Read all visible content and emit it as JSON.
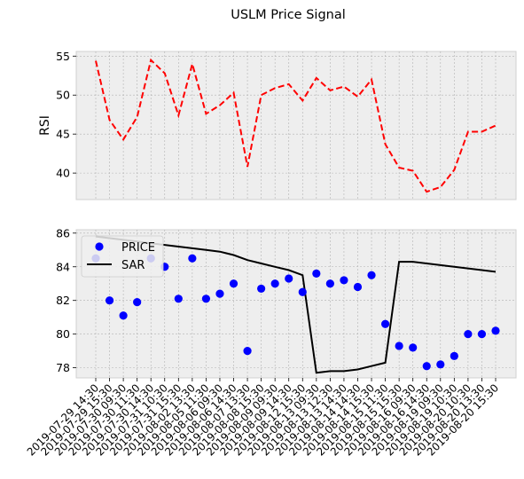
{
  "figure": {
    "title": "USLM Price Signal"
  },
  "chart_data": [
    {
      "type": "line",
      "ylabel": "RSI",
      "ylim": [
        36.6,
        55.6
      ],
      "yticks": [
        40,
        45,
        50,
        55
      ],
      "grid": true,
      "series": [
        {
          "name": "",
          "color": "#ff0000",
          "style": "dashed",
          "values": [
            54.4,
            46.8,
            44.3,
            47.2,
            54.5,
            52.8,
            47.4,
            54.0,
            47.6,
            48.7,
            50.3,
            40.8,
            50.0,
            50.9,
            51.4,
            49.3,
            52.2,
            50.6,
            51.1,
            49.8,
            52.0,
            43.7,
            40.7,
            40.3,
            37.6,
            38.2,
            40.4,
            45.3,
            45.3,
            46.1
          ]
        }
      ]
    },
    {
      "type": "scatter",
      "ylabel": "",
      "ylim": [
        77.4,
        86.2
      ],
      "yticks": [
        78,
        80,
        82,
        84,
        86
      ],
      "grid": true,
      "legend": "upper-left",
      "x": [
        "2019-07-29 14:30",
        "2019-07-29 15:30",
        "2019-07-30 09:30",
        "2019-07-30 11:30",
        "2019-07-30 14:30",
        "2019-07-31 10:30",
        "2019-07-31 15:30",
        "2019-08-02 13:30",
        "2019-08-05 11:30",
        "2019-08-06 09:30",
        "2019-08-06 14:30",
        "2019-08-07 13:30",
        "2019-08-08 15:30",
        "2019-08-09 09:30",
        "2019-08-09 14:30",
        "2019-08-12 15:30",
        "2019-08-13 09:30",
        "2019-08-13 12:30",
        "2019-08-13 14:30",
        "2019-08-14 14:30",
        "2019-08-14 15:30",
        "2019-08-15 11:30",
        "2019-08-15 15:30",
        "2019-08-16 09:30",
        "2019-08-16 14:30",
        "2019-08-19 09:30",
        "2019-08-19 10:30",
        "2019-08-20 10:30",
        "2019-08-20 13:30",
        "2019-08-20 15:30"
      ],
      "series": [
        {
          "name": "PRICE",
          "kind": "scatter",
          "color": "#0000ff",
          "values": [
            84.5,
            82.0,
            81.1,
            81.9,
            84.5,
            84.0,
            82.1,
            84.5,
            82.1,
            82.4,
            83.0,
            79.0,
            82.7,
            83.0,
            83.3,
            82.5,
            83.6,
            83.0,
            83.2,
            82.8,
            83.5,
            80.6,
            79.3,
            79.2,
            78.1,
            78.2,
            78.7,
            80.0,
            80.0,
            80.2
          ]
        },
        {
          "name": "SAR",
          "kind": "line",
          "color": "#000000",
          "values": [
            85.8,
            85.7,
            85.6,
            85.5,
            85.4,
            85.3,
            85.2,
            85.1,
            85.0,
            84.9,
            84.7,
            84.4,
            84.2,
            84.0,
            83.8,
            83.5,
            77.7,
            77.8,
            77.8,
            77.9,
            78.1,
            78.3,
            84.3,
            84.3,
            84.2,
            84.1,
            84.0,
            83.9,
            83.8,
            83.7
          ]
        }
      ]
    }
  ]
}
